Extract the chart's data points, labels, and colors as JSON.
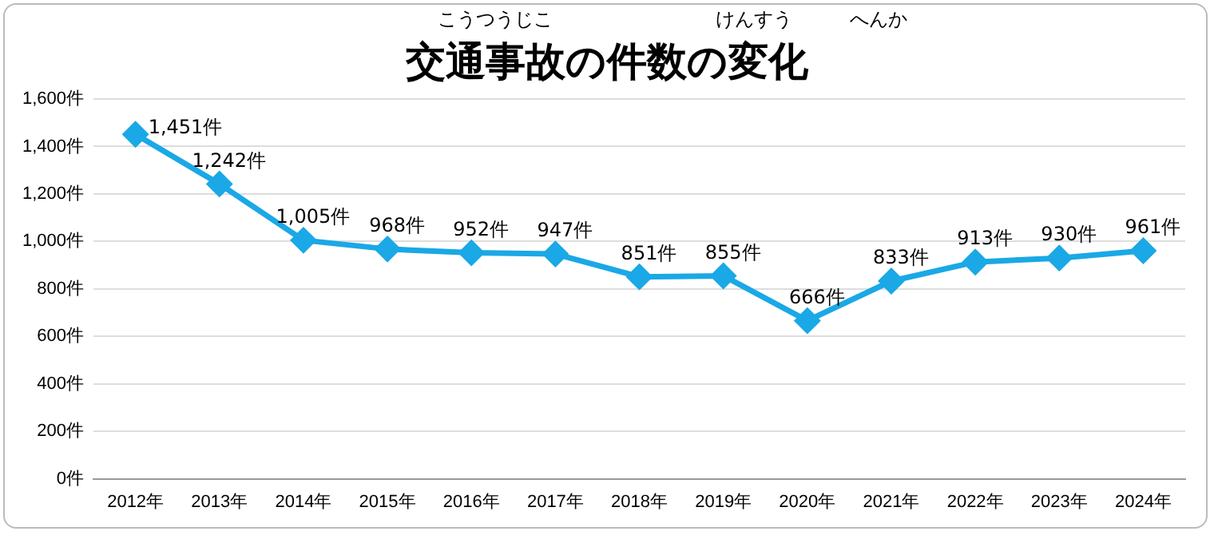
{
  "chart_data": {
    "type": "line",
    "title": "交通事故の件数の変化",
    "annotations": [
      "こうつうじこ",
      "けんすう",
      "へんか"
    ],
    "categories": [
      "2012年",
      "2013年",
      "2014年",
      "2015年",
      "2016年",
      "2017年",
      "2018年",
      "2019年",
      "2020年",
      "2021年",
      "2022年",
      "2023年",
      "2024年"
    ],
    "series": [
      {
        "color": "#1aa8e6",
        "values": [
          1451,
          1242,
          1005,
          968,
          952,
          947,
          851,
          855,
          666,
          833,
          913,
          930,
          961
        ],
        "value_labels": [
          "1,451件",
          "1,242件",
          "1,005件",
          "968件",
          "952件",
          "947件",
          "851件",
          "855件",
          "666件",
          "833件",
          "913件",
          "930件",
          "961件"
        ]
      }
    ],
    "ylim": [
      0,
      1600
    ],
    "yticks": [
      {
        "value": 0,
        "label": "0件"
      },
      {
        "value": 200,
        "label": "200件"
      },
      {
        "value": 400,
        "label": "400件"
      },
      {
        "value": 600,
        "label": "600件"
      },
      {
        "value": 800,
        "label": "800件"
      },
      {
        "value": 1000,
        "label": "1,000件"
      },
      {
        "value": 1200,
        "label": "1,200件"
      },
      {
        "value": 1400,
        "label": "1,400件"
      },
      {
        "value": 1600,
        "label": "1,600件"
      }
    ],
    "grid": "y",
    "legend": false,
    "marker": "diamond",
    "line_style": "solid"
  }
}
